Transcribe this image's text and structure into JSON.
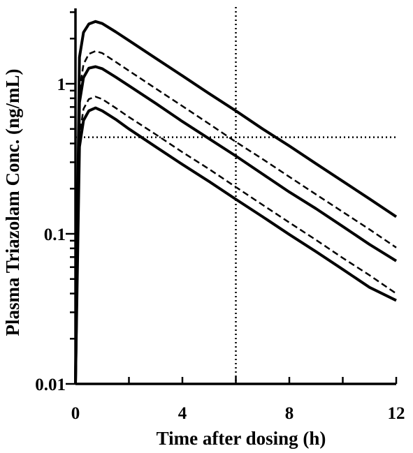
{
  "chart_data": {
    "type": "line",
    "xlabel": "Time after dosing (h)",
    "ylabel": "Plasma Triazolam  Conc. (ng/mL)",
    "xlim": [
      0,
      12
    ],
    "ylim": [
      0.01,
      3
    ],
    "y_scale": "log",
    "x_ticks": [
      0,
      4,
      8,
      12
    ],
    "x_tick_labels": [
      "0",
      "4",
      "8",
      "12"
    ],
    "y_ticks": [
      0.01,
      0.1,
      1
    ],
    "y_tick_labels": [
      "0.01",
      "0.1",
      "1"
    ],
    "grid": false,
    "legend": "none",
    "reference_lines": [
      {
        "orientation": "vertical",
        "x": 6,
        "style": "dotted"
      },
      {
        "orientation": "horizontal",
        "y": 0.44,
        "style": "dotted"
      }
    ],
    "series": [
      {
        "style": "solid",
        "x": [
          0,
          0.15,
          0.3,
          0.5,
          0.75,
          1.0,
          1.5,
          2,
          3,
          4,
          5,
          6,
          7,
          8,
          9,
          10,
          11,
          12
        ],
        "y": [
          0,
          1.5,
          2.2,
          2.5,
          2.6,
          2.52,
          2.22,
          1.94,
          1.48,
          1.13,
          0.86,
          0.66,
          0.5,
          0.385,
          0.293,
          0.224,
          0.171,
          0.13
        ]
      },
      {
        "style": "dashed",
        "x": [
          0,
          0.15,
          0.3,
          0.5,
          0.75,
          1.0,
          1.5,
          2,
          3,
          4,
          5,
          6,
          7,
          8,
          9,
          10,
          11,
          12
        ],
        "y": [
          0,
          0.9,
          1.35,
          1.58,
          1.65,
          1.6,
          1.4,
          1.22,
          0.93,
          0.71,
          0.54,
          0.41,
          0.315,
          0.24,
          0.183,
          0.14,
          0.107,
          0.081
        ]
      },
      {
        "style": "solid",
        "x": [
          0,
          0.15,
          0.3,
          0.5,
          0.75,
          1.0,
          1.5,
          2,
          3,
          4,
          5,
          6,
          7,
          8,
          9,
          10,
          11,
          12
        ],
        "y": [
          0,
          0.75,
          1.1,
          1.27,
          1.3,
          1.26,
          1.11,
          0.97,
          0.74,
          0.56,
          0.43,
          0.33,
          0.25,
          0.19,
          0.147,
          0.112,
          0.085,
          0.066
        ]
      },
      {
        "style": "dashed",
        "x": [
          0,
          0.15,
          0.3,
          0.5,
          0.75,
          1.0,
          1.5,
          2,
          3,
          4,
          5,
          6,
          7,
          8,
          9,
          10,
          11,
          12
        ],
        "y": [
          0,
          0.45,
          0.68,
          0.79,
          0.82,
          0.79,
          0.69,
          0.6,
          0.46,
          0.35,
          0.27,
          0.205,
          0.156,
          0.119,
          0.091,
          0.069,
          0.053,
          0.04
        ]
      },
      {
        "style": "solid",
        "x": [
          0,
          0.15,
          0.3,
          0.5,
          0.75,
          1.0,
          1.5,
          2,
          3,
          4,
          5,
          6,
          7,
          8,
          9,
          10,
          11,
          12
        ],
        "y": [
          0,
          0.38,
          0.57,
          0.66,
          0.69,
          0.66,
          0.58,
          0.5,
          0.38,
          0.29,
          0.223,
          0.17,
          0.13,
          0.099,
          0.076,
          0.058,
          0.044,
          0.036
        ]
      }
    ]
  }
}
